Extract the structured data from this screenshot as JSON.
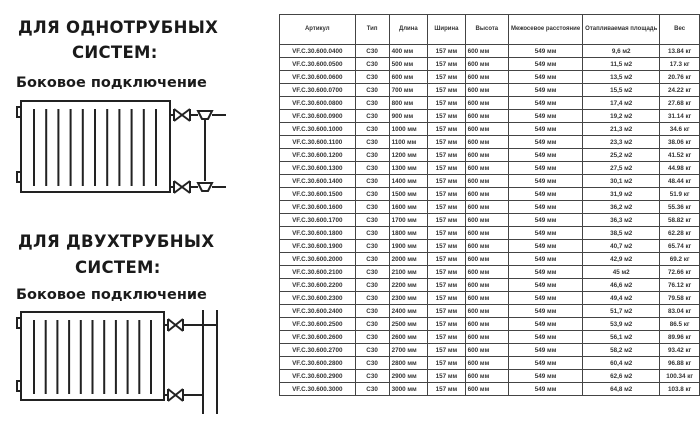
{
  "one_pipe": {
    "title_line1": "ДЛЯ ОДНОТРУБНЫХ",
    "title_line2": "СИСТЕМ:",
    "subtitle": "Боковое подключение"
  },
  "two_pipe": {
    "title_line1": "ДЛЯ ДВУХТРУБНЫХ",
    "title_line2": "СИСТЕМ:",
    "subtitle": "Боковое подключение"
  },
  "table": {
    "headers": [
      "Артикул",
      "Тип",
      "Длина",
      "Ширина",
      "Высота",
      "Межосевое расстояние",
      "Отапливаемая площадь",
      "Вес"
    ],
    "rows": [
      [
        "VF.C.30.600.0400",
        "C30",
        "400 мм",
        "157 мм",
        "600 мм",
        "549 мм",
        "9,6 м2",
        "13.84 кг"
      ],
      [
        "VF.C.30.600.0500",
        "C30",
        "500 мм",
        "157 мм",
        "600 мм",
        "549 мм",
        "11,5 м2",
        "17.3 кг"
      ],
      [
        "VF.C.30.600.0600",
        "C30",
        "600 мм",
        "157 мм",
        "600 мм",
        "549 мм",
        "13,5 м2",
        "20.76 кг"
      ],
      [
        "VF.C.30.600.0700",
        "C30",
        "700 мм",
        "157 мм",
        "600 мм",
        "549 мм",
        "15,5 м2",
        "24.22 кг"
      ],
      [
        "VF.C.30.600.0800",
        "C30",
        "800 мм",
        "157 мм",
        "600 мм",
        "549 мм",
        "17,4 м2",
        "27.68 кг"
      ],
      [
        "VF.C.30.600.0900",
        "C30",
        "900 мм",
        "157 мм",
        "600 мм",
        "549 мм",
        "19,2 м2",
        "31.14 кг"
      ],
      [
        "VF.C.30.600.1000",
        "C30",
        "1000 мм",
        "157 мм",
        "600 мм",
        "549 мм",
        "21,3 м2",
        "34.6 кг"
      ],
      [
        "VF.C.30.600.1100",
        "C30",
        "1100 мм",
        "157 мм",
        "600 мм",
        "549 мм",
        "23,3 м2",
        "38.06 кг"
      ],
      [
        "VF.C.30.600.1200",
        "C30",
        "1200 мм",
        "157 мм",
        "600 мм",
        "549 мм",
        "25,2 м2",
        "41.52 кг"
      ],
      [
        "VF.C.30.600.1300",
        "C30",
        "1300 мм",
        "157 мм",
        "600 мм",
        "549 мм",
        "27,5 м2",
        "44.98 кг"
      ],
      [
        "VF.C.30.600.1400",
        "C30",
        "1400 мм",
        "157 мм",
        "600 мм",
        "549 мм",
        "30,1 м2",
        "48.44 кг"
      ],
      [
        "VF.C.30.600.1500",
        "C30",
        "1500 мм",
        "157 мм",
        "600 мм",
        "549 мм",
        "31,9 м2",
        "51.9 кг"
      ],
      [
        "VF.C.30.600.1600",
        "C30",
        "1600 мм",
        "157 мм",
        "600 мм",
        "549 мм",
        "36,2 м2",
        "55.36 кг"
      ],
      [
        "VF.C.30.600.1700",
        "C30",
        "1700 мм",
        "157 мм",
        "600 мм",
        "549 мм",
        "36,3 м2",
        "58.82 кг"
      ],
      [
        "VF.C.30.600.1800",
        "C30",
        "1800 мм",
        "157 мм",
        "600 мм",
        "549 мм",
        "38,5 м2",
        "62.28 кг"
      ],
      [
        "VF.C.30.600.1900",
        "C30",
        "1900 мм",
        "157 мм",
        "600 мм",
        "549 мм",
        "40,7 м2",
        "65.74 кг"
      ],
      [
        "VF.C.30.600.2000",
        "C30",
        "2000 мм",
        "157 мм",
        "600 мм",
        "549 мм",
        "42,9 м2",
        "69.2 кг"
      ],
      [
        "VF.C.30.600.2100",
        "C30",
        "2100 мм",
        "157 мм",
        "600 мм",
        "549 мм",
        "45 м2",
        "72.66 кг"
      ],
      [
        "VF.C.30.600.2200",
        "C30",
        "2200 мм",
        "157 мм",
        "600 мм",
        "549 мм",
        "46,6 м2",
        "76.12 кг"
      ],
      [
        "VF.C.30.600.2300",
        "C30",
        "2300 мм",
        "157 мм",
        "600 мм",
        "549 мм",
        "49,4 м2",
        "79.58 кг"
      ],
      [
        "VF.C.30.600.2400",
        "C30",
        "2400 мм",
        "157 мм",
        "600 мм",
        "549 мм",
        "51,7 м2",
        "83.04 кг"
      ],
      [
        "VF.C.30.600.2500",
        "C30",
        "2500 мм",
        "157 мм",
        "600 мм",
        "549 мм",
        "53,9 м2",
        "86.5 кг"
      ],
      [
        "VF.C.30.600.2600",
        "C30",
        "2600 мм",
        "157 мм",
        "600 мм",
        "549 мм",
        "56,1 м2",
        "89.96 кг"
      ],
      [
        "VF.C.30.600.2700",
        "C30",
        "2700 мм",
        "157 мм",
        "600 мм",
        "549 мм",
        "58,2 м2",
        "93.42 кг"
      ],
      [
        "VF.C.30.600.2800",
        "C30",
        "2800 мм",
        "157 мм",
        "600 мм",
        "549 мм",
        "60,4 м2",
        "96.88 кг"
      ],
      [
        "VF.C.30.600.2900",
        "C30",
        "2900 мм",
        "157 мм",
        "600 мм",
        "549 мм",
        "62,6 м2",
        "100.34 кг"
      ],
      [
        "VF.C.30.600.3000",
        "C30",
        "3000 мм",
        "157 мм",
        "600 мм",
        "549 мм",
        "64,8 м2",
        "103.8 кг"
      ]
    ]
  },
  "icons": {
    "diagram_one_pipe": "radiator-one-pipe-side-connection-diagram",
    "diagram_two_pipe": "radiator-two-pipe-side-connection-diagram"
  }
}
